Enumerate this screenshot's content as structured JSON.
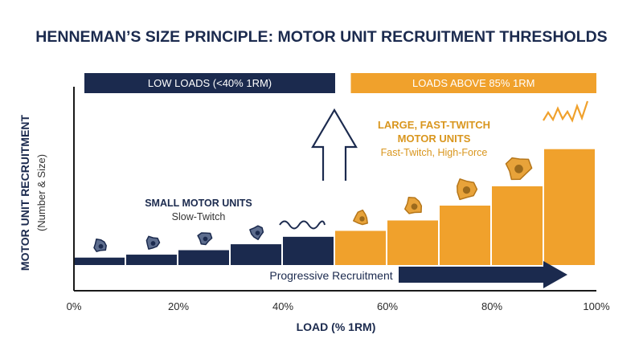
{
  "chart_data": {
    "type": "bar",
    "title": "HENNEMAN’S SIZE PRINCIPLE: MOTOR UNIT RECRUITMENT THRESHOLDS",
    "xlabel": "LOAD (% 1RM)",
    "ylabel": "MOTOR UNIT RECRUITMENT",
    "ylabel_sub": "(Number & Size)",
    "xlim": [
      0,
      100
    ],
    "ylim": [
      0,
      100
    ],
    "x_ticks": [
      "0%",
      "20%",
      "40%",
      "60%",
      "80%",
      "100%"
    ],
    "x_tick_values": [
      0,
      20,
      40,
      60,
      80,
      100
    ],
    "bars": [
      {
        "x0": 0,
        "x1": 10,
        "value": 5,
        "unit": "small"
      },
      {
        "x0": 10,
        "x1": 20,
        "value": 7,
        "unit": "small"
      },
      {
        "x0": 20,
        "x1": 30,
        "value": 10,
        "unit": "small"
      },
      {
        "x0": 30,
        "x1": 40,
        "value": 14,
        "unit": "small"
      },
      {
        "x0": 40,
        "x1": 50,
        "value": 19,
        "unit": "small"
      },
      {
        "x0": 50,
        "x1": 60,
        "value": 23,
        "unit": "large"
      },
      {
        "x0": 60,
        "x1": 70,
        "value": 30,
        "unit": "large"
      },
      {
        "x0": 70,
        "x1": 80,
        "value": 40,
        "unit": "large"
      },
      {
        "x0": 80,
        "x1": 90,
        "value": 53,
        "unit": "large"
      },
      {
        "x0": 90,
        "x1": 100,
        "value": 78,
        "unit": "large"
      }
    ],
    "bands": [
      {
        "label": "LOW LOADS (<40% 1RM)",
        "x0": 2,
        "x1": 50,
        "color": "#1b2a4e"
      },
      {
        "label": "LOADS ABOVE 85% 1RM",
        "x0": 53,
        "x1": 100,
        "color": "#f0a12c"
      }
    ],
    "annotations": {
      "small_title": "SMALL MOTOR UNITS",
      "small_sub": "Slow-Twitch",
      "large_title_1": "LARGE, FAST-TWITCH",
      "large_title_2": "MOTOR UNITS",
      "large_sub": "Fast-Twitch, High-Force",
      "progressive": "Progressive Recruitment"
    },
    "colors": {
      "small": "#1b2a4e",
      "large": "#f0a12c",
      "title": "#1b2a4e",
      "axis": "#1a1a1a",
      "gold_text": "#d9961e",
      "cell_fill": "#e8a33a",
      "cell_nucleus": "#9c6a1c"
    },
    "grid": false,
    "legend": "none"
  }
}
